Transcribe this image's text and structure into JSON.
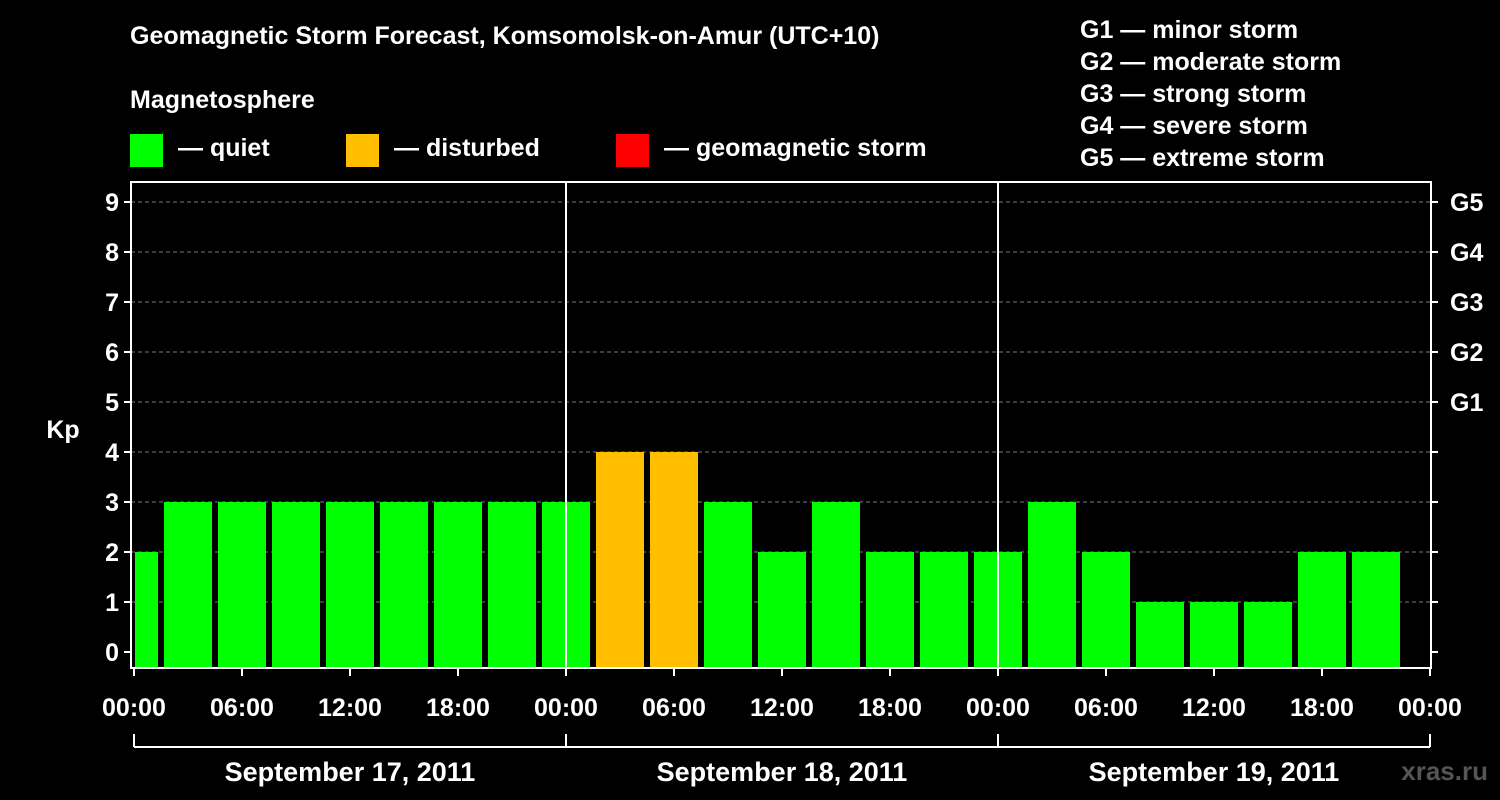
{
  "chart_data": {
    "type": "bar",
    "title": "Geomagnetic Storm Forecast, Komsomolsk-on-Amur (UTC+10)",
    "subtitle": "Magnetosphere",
    "ylabel": "Kp",
    "ylim": [
      0,
      9
    ],
    "y_ticks": [
      "0",
      "1",
      "2",
      "3",
      "4",
      "5",
      "6",
      "7",
      "8",
      "9"
    ],
    "right_ticks": [
      {
        "kp": 5,
        "label": "G1"
      },
      {
        "kp": 6,
        "label": "G2"
      },
      {
        "kp": 7,
        "label": "G3"
      },
      {
        "kp": 8,
        "label": "G4"
      },
      {
        "kp": 9,
        "label": "G5"
      }
    ],
    "x_tick_labels": [
      "00:00",
      "06:00",
      "12:00",
      "18:00",
      "00:00",
      "06:00",
      "12:00",
      "18:00",
      "00:00",
      "06:00",
      "12:00",
      "18:00",
      "00:00"
    ],
    "days": [
      "September 17, 2011",
      "September 18, 2011",
      "September 19, 2011"
    ],
    "interval_hours": 3,
    "values": [
      2,
      3,
      3,
      3,
      3,
      3,
      3,
      3,
      3,
      4,
      4,
      3,
      2,
      3,
      2,
      2,
      2,
      3,
      2,
      1,
      1,
      1,
      2,
      2
    ],
    "legend": [
      {
        "label": "— quiet",
        "color": "#00ff00"
      },
      {
        "label": "— disturbed",
        "color": "#ffbf00"
      },
      {
        "label": "— geomagnetic storm",
        "color": "#ff0000"
      }
    ],
    "storm_levels": [
      "G1 — minor storm",
      "G2 — moderate storm",
      "G3 — strong storm",
      "G4 — severe storm",
      "G5 — extreme storm"
    ],
    "grid": true
  },
  "watermark": "xras.ru"
}
